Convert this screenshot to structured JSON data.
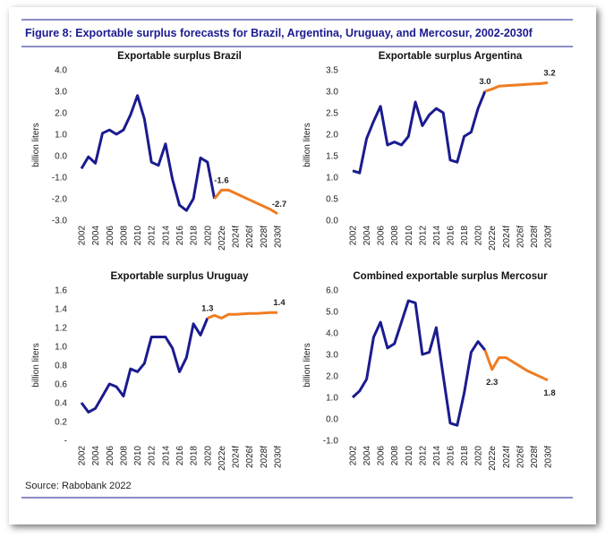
{
  "title": "Figure 8: Exportable surplus forecasts for Brazil, Argentina, Uruguay, and Mercosur, 2002-2030f",
  "source": "Source: Rabobank 2022",
  "chart_data": [
    {
      "type": "line",
      "title": "Exportable surplus Brazil",
      "y_label": "billion liters",
      "categories": [
        "2002",
        null,
        "2004",
        null,
        "2006",
        null,
        "2008",
        null,
        "2010",
        null,
        "2012",
        null,
        "2014",
        null,
        "2016",
        null,
        "2018",
        null,
        "2020",
        null,
        "2022e",
        null,
        "2024f",
        null,
        "2026f",
        null,
        "2028f",
        null,
        "2030f"
      ],
      "series": [
        {
          "color": "#1b1b8f",
          "values": [
            -0.6,
            -0.05,
            -0.35,
            1.05,
            1.2,
            1.0,
            1.2,
            1.9,
            2.8,
            1.7,
            -0.3,
            -0.45,
            0.55,
            -1.1,
            -2.3,
            -2.55,
            -2.0,
            -0.1,
            -0.3,
            -2.0,
            null,
            null,
            null,
            null,
            null,
            null,
            null,
            null,
            null
          ]
        },
        {
          "color": "#f07c21",
          "values": [
            null,
            null,
            null,
            null,
            null,
            null,
            null,
            null,
            null,
            null,
            null,
            null,
            null,
            null,
            null,
            null,
            null,
            null,
            null,
            -2.0,
            -1.6,
            -1.6,
            -1.75,
            -1.9,
            -2.05,
            -2.2,
            -2.35,
            -2.5,
            -2.7
          ],
          "value_labels": [
            null,
            null,
            null,
            null,
            null,
            null,
            null,
            null,
            null,
            null,
            null,
            null,
            null,
            null,
            null,
            null,
            null,
            null,
            null,
            null,
            "-1.6",
            null,
            null,
            null,
            null,
            null,
            null,
            null,
            "-2.7"
          ]
        }
      ],
      "ylim": [
        -3,
        4
      ],
      "yticks": [
        {
          "value": 4,
          "label": "4.0"
        },
        {
          "value": 3,
          "label": "3.0"
        },
        {
          "value": 2,
          "label": "2.0"
        },
        {
          "value": 1,
          "label": "1.0"
        },
        {
          "value": 0,
          "label": "0.0"
        },
        {
          "value": -1,
          "label": "-1.0"
        },
        {
          "value": -2,
          "label": "-2.0"
        },
        {
          "value": -3,
          "label": "-3.0"
        }
      ],
      "grid": false
    },
    {
      "type": "line",
      "title": "Exportable surplus Argentina",
      "y_label": "billion liters",
      "categories": [
        "2002",
        null,
        "2004",
        null,
        "2006",
        null,
        "2008",
        null,
        "2010",
        null,
        "2012",
        null,
        "2014",
        null,
        "2016",
        null,
        "2018",
        null,
        "2020",
        null,
        "2022e",
        null,
        "2024f",
        null,
        "2026f",
        null,
        "2028f",
        null,
        "2030f"
      ],
      "series": [
        {
          "color": "#1b1b8f",
          "values": [
            1.15,
            1.1,
            1.9,
            2.3,
            2.65,
            1.75,
            1.82,
            1.75,
            1.95,
            2.75,
            2.2,
            2.45,
            2.6,
            2.5,
            1.4,
            1.35,
            1.95,
            2.05,
            2.6,
            3.0,
            null,
            null,
            null,
            null,
            null,
            null,
            null,
            null,
            null
          ]
        },
        {
          "color": "#f07c21",
          "values": [
            null,
            null,
            null,
            null,
            null,
            null,
            null,
            null,
            null,
            null,
            null,
            null,
            null,
            null,
            null,
            null,
            null,
            null,
            null,
            3.0,
            3.05,
            3.12,
            3.13,
            3.14,
            3.15,
            3.16,
            3.17,
            3.18,
            3.2
          ],
          "value_labels": [
            null,
            null,
            null,
            null,
            null,
            null,
            null,
            null,
            null,
            null,
            null,
            null,
            null,
            null,
            null,
            null,
            null,
            null,
            null,
            "3.0",
            null,
            null,
            null,
            null,
            null,
            null,
            null,
            null,
            "3.2"
          ]
        }
      ],
      "ylim": [
        0,
        3.5
      ],
      "yticks": [
        {
          "value": 3.5,
          "label": "3.5"
        },
        {
          "value": 3,
          "label": "3.0"
        },
        2.5,
        {
          "value": 2,
          "label": "2.0"
        },
        1.5,
        {
          "value": 1,
          "label": "1.0"
        },
        0.5,
        {
          "value": 0,
          "label": "0.0"
        }
      ],
      "grid": false
    },
    {
      "type": "line",
      "title": "Exportable surplus Uruguay",
      "y_label": "billion liters",
      "categories": [
        "2002",
        null,
        "2004",
        null,
        "2006",
        null,
        "2008",
        null,
        "2010",
        null,
        "2012",
        null,
        "2014",
        null,
        "2016",
        null,
        "2018",
        null,
        "2020",
        null,
        "2022e",
        null,
        "2024f",
        null,
        "2026f",
        null,
        "2028f",
        null,
        "2030f"
      ],
      "series": [
        {
          "color": "#1b1b8f",
          "values": [
            0.4,
            0.3,
            0.34,
            0.47,
            0.6,
            0.57,
            0.47,
            0.76,
            0.73,
            0.82,
            1.1,
            1.1,
            1.1,
            0.98,
            0.73,
            0.88,
            1.24,
            1.12,
            1.3,
            null,
            null,
            null,
            null,
            null,
            null,
            null,
            null,
            null,
            null
          ]
        },
        {
          "color": "#f07c21",
          "values": [
            null,
            null,
            null,
            null,
            null,
            null,
            null,
            null,
            null,
            null,
            null,
            null,
            null,
            null,
            null,
            null,
            null,
            null,
            1.3,
            1.33,
            1.3,
            1.34,
            1.34,
            1.345,
            1.35,
            1.35,
            1.355,
            1.36,
            1.36
          ],
          "value_labels": [
            null,
            null,
            null,
            null,
            null,
            null,
            null,
            null,
            null,
            null,
            null,
            null,
            null,
            null,
            null,
            null,
            null,
            null,
            "1.3",
            null,
            null,
            null,
            null,
            null,
            null,
            null,
            null,
            null,
            "1.4"
          ]
        }
      ],
      "ylim": [
        0,
        1.6
      ],
      "yticks": [
        1.6,
        1.4,
        1.2,
        {
          "value": 1,
          "label": "1.0"
        },
        0.8,
        0.6,
        0.4,
        0.2,
        {
          "value": 0,
          "label": "-"
        }
      ],
      "grid": false
    },
    {
      "type": "line",
      "title": "Combined exportable surplus Mercosur",
      "y_label": "billion liters",
      "categories": [
        "2002",
        null,
        "2004",
        null,
        "2006",
        null,
        "2008",
        null,
        "2010",
        null,
        "2012",
        null,
        "2014",
        null,
        "2016",
        null,
        "2018",
        null,
        "2020",
        null,
        "2022e",
        null,
        "2024f",
        null,
        "2026f",
        null,
        "2028f",
        null,
        "2030f"
      ],
      "series": [
        {
          "color": "#1b1b8f",
          "values": [
            1.0,
            1.3,
            1.85,
            3.8,
            4.5,
            3.3,
            3.5,
            4.5,
            5.5,
            5.4,
            3.0,
            3.1,
            4.25,
            2.0,
            -0.2,
            -0.3,
            1.2,
            3.1,
            3.6,
            3.2,
            null,
            null,
            null,
            null,
            null,
            null,
            null,
            null,
            null
          ]
        },
        {
          "color": "#f07c21",
          "values": [
            null,
            null,
            null,
            null,
            null,
            null,
            null,
            null,
            null,
            null,
            null,
            null,
            null,
            null,
            null,
            null,
            null,
            null,
            null,
            3.2,
            2.3,
            2.85,
            2.85,
            2.65,
            2.45,
            2.25,
            2.1,
            1.95,
            1.8
          ],
          "value_labels": [
            null,
            null,
            null,
            null,
            null,
            null,
            null,
            null,
            null,
            null,
            null,
            null,
            null,
            null,
            null,
            null,
            null,
            null,
            null,
            null,
            "2.3",
            null,
            null,
            null,
            null,
            null,
            null,
            null,
            "1.8"
          ]
        }
      ],
      "ylim": [
        -1,
        6
      ],
      "yticks": [
        {
          "value": 6,
          "label": "6.0"
        },
        {
          "value": 5,
          "label": "5.0"
        },
        {
          "value": 4,
          "label": "4.0"
        },
        {
          "value": 3,
          "label": "3.0"
        },
        {
          "value": 2,
          "label": "2.0"
        },
        {
          "value": 1,
          "label": "1.0"
        },
        {
          "value": 0,
          "label": "0.0"
        },
        {
          "value": -1,
          "label": "-1.0"
        }
      ],
      "grid": false
    }
  ]
}
